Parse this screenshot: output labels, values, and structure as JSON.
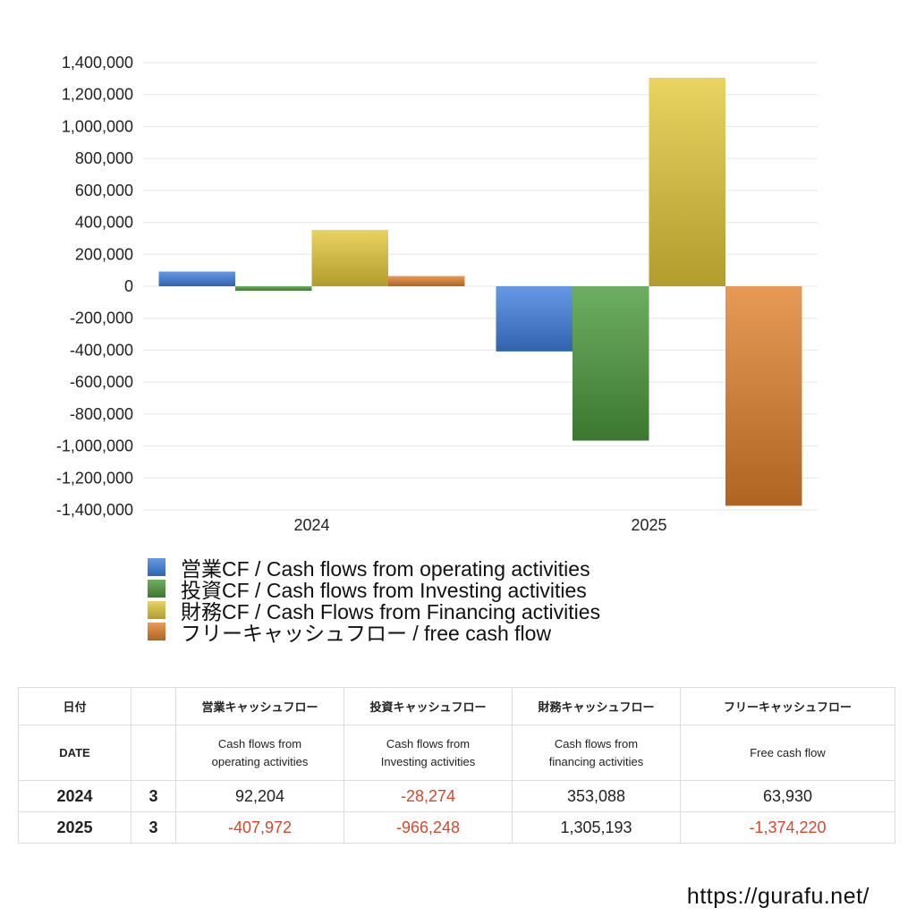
{
  "chart_data": {
    "type": "bar",
    "categories": [
      "2024",
      "2025"
    ],
    "ylim": [
      -1400000,
      1400000
    ],
    "yticks": [
      "1,400,000",
      "1,200,000",
      "1,000,000",
      "800,000",
      "600,000",
      "400,000",
      "200,000",
      "0",
      "-200,000",
      "-400,000",
      "-600,000",
      "-800,000",
      "-1,000,000",
      "-1,200,000",
      "-1,400,000"
    ],
    "grid": true,
    "legend_position": "bottom",
    "series": [
      {
        "name": "営業CF / Cash flows from operating activities",
        "color": "#3f7fe0",
        "values": [
          92204,
          -407972
        ]
      },
      {
        "name": "投資CF / Cash flows from Investing activities",
        "color": "#4a9a3c",
        "values": [
          -28274,
          -966248
        ]
      },
      {
        "name": "財務CF / Cash Flows from Financing activities",
        "color": "#e3c83a",
        "values": [
          353088,
          1305193
        ]
      },
      {
        "name": "フリーキャッシュフロー / free cash flow",
        "color": "#e0812c",
        "values": [
          63930,
          -1374220
        ]
      }
    ]
  },
  "table": {
    "header_jp": [
      "日付",
      "",
      "営業キャッシュフロー",
      "投資キャッシュフロー",
      "財務キャッシュフロー",
      "フリーキャッシュフロー"
    ],
    "header_en": [
      "DATE",
      "",
      "Cash flows from\noperating activities",
      "Cash flows from\nInvesting activities",
      "Cash flows from\nfinancing activities",
      "Free cash flow"
    ],
    "rows": [
      {
        "year": "2024",
        "month": "3",
        "op": "92,204",
        "inv": "-28,274",
        "fin": "353,088",
        "free": "63,930"
      },
      {
        "year": "2025",
        "month": "3",
        "op": "-407,972",
        "inv": "-966,248",
        "fin": "1,305,193",
        "free": "-1,374,220"
      }
    ]
  },
  "footer_url": "https://gurafu.net/"
}
